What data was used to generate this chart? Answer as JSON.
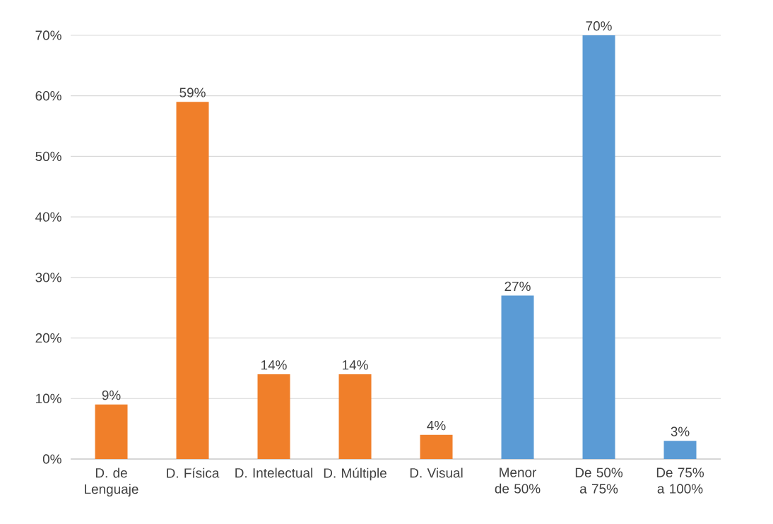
{
  "chart_data": {
    "type": "bar",
    "categories": [
      "D. de Lenguaje",
      "D. Física",
      "D. Intelectual",
      "D. Múltiple",
      "D. Visual",
      "Menor de 50%",
      "De 50% a 75%",
      "De 75% a 100%"
    ],
    "values": [
      9,
      59,
      14,
      14,
      4,
      27,
      70,
      3
    ],
    "colors": [
      "#f07f2a",
      "#f07f2a",
      "#f07f2a",
      "#f07f2a",
      "#f07f2a",
      "#5b9bd5",
      "#5b9bd5",
      "#5b9bd5"
    ],
    "value_labels": [
      "9%",
      "59%",
      "14%",
      "14%",
      "4%",
      "27%",
      "70%",
      "3%"
    ],
    "ylim": [
      0,
      70
    ],
    "yticks": [
      {
        "value": 0,
        "label": "0%"
      },
      {
        "value": 10,
        "label": "10%"
      },
      {
        "value": 20,
        "label": "20%"
      },
      {
        "value": 30,
        "label": "30%"
      },
      {
        "value": 40,
        "label": "40%"
      },
      {
        "value": 50,
        "label": "50%"
      },
      {
        "value": 60,
        "label": "60%"
      },
      {
        "value": 70,
        "label": "70%"
      }
    ],
    "grid": "y"
  }
}
